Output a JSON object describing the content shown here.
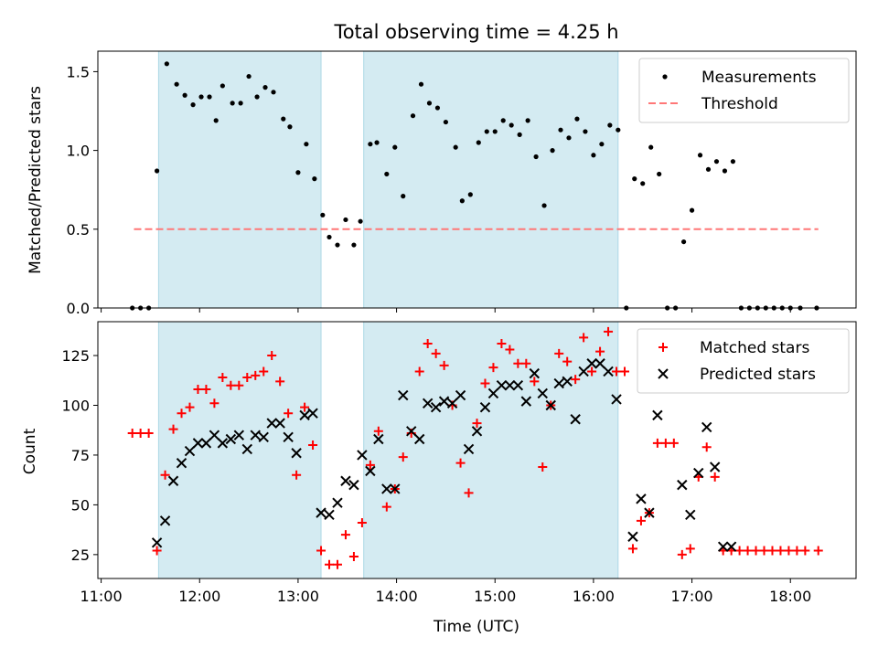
{
  "title": "Total observing time = 4.25 h",
  "xlabel": "Time (UTC)",
  "xticks": [
    "11:00",
    "12:00",
    "13:00",
    "14:00",
    "15:00",
    "16:00",
    "17:00",
    "18:00"
  ],
  "chart_data": [
    {
      "type": "scatter",
      "panel": "top",
      "ylabel": "Matched/Predicted stars",
      "xlim": [
        "10:58",
        "18:40"
      ],
      "ylim": [
        0,
        1.63
      ],
      "yticks": [
        "0.0",
        "0.5",
        "1.0",
        "1.5"
      ],
      "shaded_intervals": [
        [
          "11:35",
          "13:14"
        ],
        [
          "13:40",
          "16:15"
        ]
      ],
      "legend": {
        "location": "top-right",
        "entries": [
          "Measurements",
          "Threshold"
        ]
      },
      "series": [
        {
          "name": "Measurements",
          "marker": "dot",
          "color": "#000000",
          "points": [
            [
              "11:19",
              0
            ],
            [
              "11:24",
              0
            ],
            [
              "11:29",
              0
            ],
            [
              "11:34",
              0.87
            ],
            [
              "11:40",
              1.55
            ],
            [
              "11:46",
              1.42
            ],
            [
              "11:51",
              1.35
            ],
            [
              "11:56",
              1.29
            ],
            [
              "12:01",
              1.34
            ],
            [
              "12:06",
              1.34
            ],
            [
              "12:10",
              1.19
            ],
            [
              "12:14",
              1.41
            ],
            [
              "12:20",
              1.3
            ],
            [
              "12:25",
              1.3
            ],
            [
              "12:30",
              1.47
            ],
            [
              "12:35",
              1.34
            ],
            [
              "12:40",
              1.4
            ],
            [
              "12:45",
              1.37
            ],
            [
              "12:51",
              1.2
            ],
            [
              "12:55",
              1.15
            ],
            [
              "13:00",
              0.86
            ],
            [
              "13:05",
              1.04
            ],
            [
              "13:10",
              0.82
            ],
            [
              "13:15",
              0.59
            ],
            [
              "13:19",
              0.45
            ],
            [
              "13:24",
              0.4
            ],
            [
              "13:29",
              0.56
            ],
            [
              "13:34",
              0.4
            ],
            [
              "13:38",
              0.55
            ],
            [
              "13:44",
              1.04
            ],
            [
              "13:48",
              1.05
            ],
            [
              "13:54",
              0.85
            ],
            [
              "13:59",
              1.02
            ],
            [
              "14:04",
              0.71
            ],
            [
              "14:10",
              1.22
            ],
            [
              "14:15",
              1.42
            ],
            [
              "14:20",
              1.3
            ],
            [
              "14:25",
              1.27
            ],
            [
              "14:30",
              1.18
            ],
            [
              "14:36",
              1.02
            ],
            [
              "14:40",
              0.68
            ],
            [
              "14:45",
              0.72
            ],
            [
              "14:50",
              1.05
            ],
            [
              "14:55",
              1.12
            ],
            [
              "15:00",
              1.12
            ],
            [
              "15:05",
              1.19
            ],
            [
              "15:10",
              1.16
            ],
            [
              "15:15",
              1.1
            ],
            [
              "15:20",
              1.19
            ],
            [
              "15:25",
              0.96
            ],
            [
              "15:30",
              0.65
            ],
            [
              "15:35",
              1.0
            ],
            [
              "15:40",
              1.13
            ],
            [
              "15:45",
              1.08
            ],
            [
              "15:50",
              1.2
            ],
            [
              "15:55",
              1.12
            ],
            [
              "16:00",
              0.97
            ],
            [
              "16:05",
              1.04
            ],
            [
              "16:10",
              1.16
            ],
            [
              "16:15",
              1.13
            ],
            [
              "16:20",
              0
            ],
            [
              "16:25",
              0.82
            ],
            [
              "16:30",
              0.79
            ],
            [
              "16:35",
              1.02
            ],
            [
              "16:40",
              0.85
            ],
            [
              "16:45",
              0
            ],
            [
              "16:50",
              0
            ],
            [
              "16:55",
              0.42
            ],
            [
              "17:00",
              0.62
            ],
            [
              "17:05",
              0.97
            ],
            [
              "17:10",
              0.88
            ],
            [
              "17:15",
              0.93
            ],
            [
              "17:20",
              0.87
            ],
            [
              "17:25",
              0.93
            ],
            [
              "17:30",
              0
            ],
            [
              "17:35",
              0
            ],
            [
              "17:40",
              0
            ],
            [
              "17:45",
              0
            ],
            [
              "17:50",
              0
            ],
            [
              "17:55",
              0
            ],
            [
              "18:00",
              0
            ],
            [
              "18:06",
              0
            ],
            [
              "18:16",
              0
            ]
          ]
        },
        {
          "name": "Threshold",
          "style": "dashed-line",
          "color": "#ff7777",
          "points": [
            [
              "11:20",
              0.5
            ],
            [
              "18:17",
              0.5
            ]
          ]
        }
      ]
    },
    {
      "type": "scatter",
      "panel": "bottom",
      "ylabel": "Count",
      "xlim": [
        "10:58",
        "18:40"
      ],
      "ylim": [
        13,
        142
      ],
      "yticks": [
        "25",
        "50",
        "75",
        "100",
        "125"
      ],
      "shaded_intervals": [
        [
          "11:35",
          "13:14"
        ],
        [
          "13:40",
          "16:15"
        ]
      ],
      "legend": {
        "location": "top-right",
        "entries": [
          "Matched stars",
          "Predicted stars"
        ]
      },
      "series": [
        {
          "name": "Matched stars",
          "marker": "plus",
          "color": "#ff0000",
          "points": [
            [
              "11:19",
              86
            ],
            [
              "11:24",
              86
            ],
            [
              "11:29",
              86
            ],
            [
              "11:34",
              27
            ],
            [
              "11:39",
              65
            ],
            [
              "11:44",
              88
            ],
            [
              "11:49",
              96
            ],
            [
              "11:54",
              99
            ],
            [
              "11:59",
              108
            ],
            [
              "12:04",
              108
            ],
            [
              "12:09",
              101
            ],
            [
              "12:14",
              114
            ],
            [
              "12:19",
              110
            ],
            [
              "12:24",
              110
            ],
            [
              "12:29",
              114
            ],
            [
              "12:34",
              115
            ],
            [
              "12:39",
              117
            ],
            [
              "12:44",
              125
            ],
            [
              "12:49",
              112
            ],
            [
              "12:54",
              96
            ],
            [
              "12:59",
              65
            ],
            [
              "13:04",
              99
            ],
            [
              "13:09",
              80
            ],
            [
              "13:14",
              27
            ],
            [
              "13:19",
              20
            ],
            [
              "13:24",
              20
            ],
            [
              "13:29",
              35
            ],
            [
              "13:34",
              24
            ],
            [
              "13:39",
              41
            ],
            [
              "13:44",
              70
            ],
            [
              "13:49",
              87
            ],
            [
              "13:54",
              49
            ],
            [
              "13:59",
              58
            ],
            [
              "14:04",
              74
            ],
            [
              "14:09",
              86
            ],
            [
              "14:14",
              117
            ],
            [
              "14:19",
              131
            ],
            [
              "14:24",
              126
            ],
            [
              "14:29",
              120
            ],
            [
              "14:34",
              100
            ],
            [
              "14:39",
              71
            ],
            [
              "14:44",
              56
            ],
            [
              "14:49",
              91
            ],
            [
              "14:54",
              111
            ],
            [
              "14:59",
              119
            ],
            [
              "15:04",
              131
            ],
            [
              "15:09",
              128
            ],
            [
              "15:14",
              121
            ],
            [
              "15:19",
              121
            ],
            [
              "15:24",
              112
            ],
            [
              "15:29",
              69
            ],
            [
              "15:34",
              100
            ],
            [
              "15:39",
              126
            ],
            [
              "15:44",
              122
            ],
            [
              "15:49",
              113
            ],
            [
              "15:54",
              134
            ],
            [
              "15:59",
              117
            ],
            [
              "16:04",
              127
            ],
            [
              "16:09",
              137
            ],
            [
              "16:14",
              117
            ],
            [
              "16:19",
              117
            ],
            [
              "16:24",
              28
            ],
            [
              "16:29",
              42
            ],
            [
              "16:34",
              46
            ],
            [
              "16:39",
              81
            ],
            [
              "16:44",
              81
            ],
            [
              "16:49",
              81
            ],
            [
              "16:54",
              25
            ],
            [
              "16:59",
              28
            ],
            [
              "17:04",
              64
            ],
            [
              "17:09",
              79
            ],
            [
              "17:14",
              64
            ],
            [
              "17:19",
              27
            ],
            [
              "17:24",
              27
            ],
            [
              "17:29",
              27
            ],
            [
              "17:34",
              27
            ],
            [
              "17:39",
              27
            ],
            [
              "17:44",
              27
            ],
            [
              "17:49",
              27
            ],
            [
              "17:54",
              27
            ],
            [
              "17:59",
              27
            ],
            [
              "18:04",
              27
            ],
            [
              "18:09",
              27
            ],
            [
              "18:17",
              27
            ]
          ]
        },
        {
          "name": "Predicted stars",
          "marker": "x",
          "color": "#000000",
          "points": [
            [
              "11:34",
              31
            ],
            [
              "11:39",
              42
            ],
            [
              "11:44",
              62
            ],
            [
              "11:49",
              71
            ],
            [
              "11:54",
              77
            ],
            [
              "11:59",
              81
            ],
            [
              "12:04",
              81
            ],
            [
              "12:09",
              85
            ],
            [
              "12:14",
              81
            ],
            [
              "12:19",
              83
            ],
            [
              "12:24",
              85
            ],
            [
              "12:29",
              78
            ],
            [
              "12:34",
              85
            ],
            [
              "12:39",
              84
            ],
            [
              "12:44",
              91
            ],
            [
              "12:49",
              91
            ],
            [
              "12:54",
              84
            ],
            [
              "12:59",
              76
            ],
            [
              "13:04",
              95
            ],
            [
              "13:09",
              96
            ],
            [
              "13:14",
              46
            ],
            [
              "13:19",
              45
            ],
            [
              "13:24",
              51
            ],
            [
              "13:29",
              62
            ],
            [
              "13:34",
              60
            ],
            [
              "13:39",
              75
            ],
            [
              "13:44",
              67
            ],
            [
              "13:49",
              83
            ],
            [
              "13:54",
              58
            ],
            [
              "13:59",
              58
            ],
            [
              "14:04",
              105
            ],
            [
              "14:09",
              87
            ],
            [
              "14:14",
              83
            ],
            [
              "14:19",
              101
            ],
            [
              "14:24",
              99
            ],
            [
              "14:29",
              102
            ],
            [
              "14:34",
              101
            ],
            [
              "14:39",
              105
            ],
            [
              "14:44",
              78
            ],
            [
              "14:49",
              87
            ],
            [
              "14:54",
              99
            ],
            [
              "14:59",
              106
            ],
            [
              "15:04",
              110
            ],
            [
              "15:09",
              110
            ],
            [
              "15:14",
              110
            ],
            [
              "15:19",
              102
            ],
            [
              "15:24",
              116
            ],
            [
              "15:29",
              106
            ],
            [
              "15:34",
              100
            ],
            [
              "15:39",
              111
            ],
            [
              "15:44",
              112
            ],
            [
              "15:49",
              93
            ],
            [
              "15:54",
              117
            ],
            [
              "15:59",
              121
            ],
            [
              "16:04",
              121
            ],
            [
              "16:09",
              117
            ],
            [
              "16:14",
              103
            ],
            [
              "16:24",
              34
            ],
            [
              "16:29",
              53
            ],
            [
              "16:34",
              46
            ],
            [
              "16:39",
              95
            ],
            [
              "16:54",
              60
            ],
            [
              "16:59",
              45
            ],
            [
              "17:04",
              66
            ],
            [
              "17:09",
              89
            ],
            [
              "17:14",
              69
            ],
            [
              "17:19",
              29
            ],
            [
              "17:24",
              29
            ]
          ]
        }
      ]
    }
  ]
}
